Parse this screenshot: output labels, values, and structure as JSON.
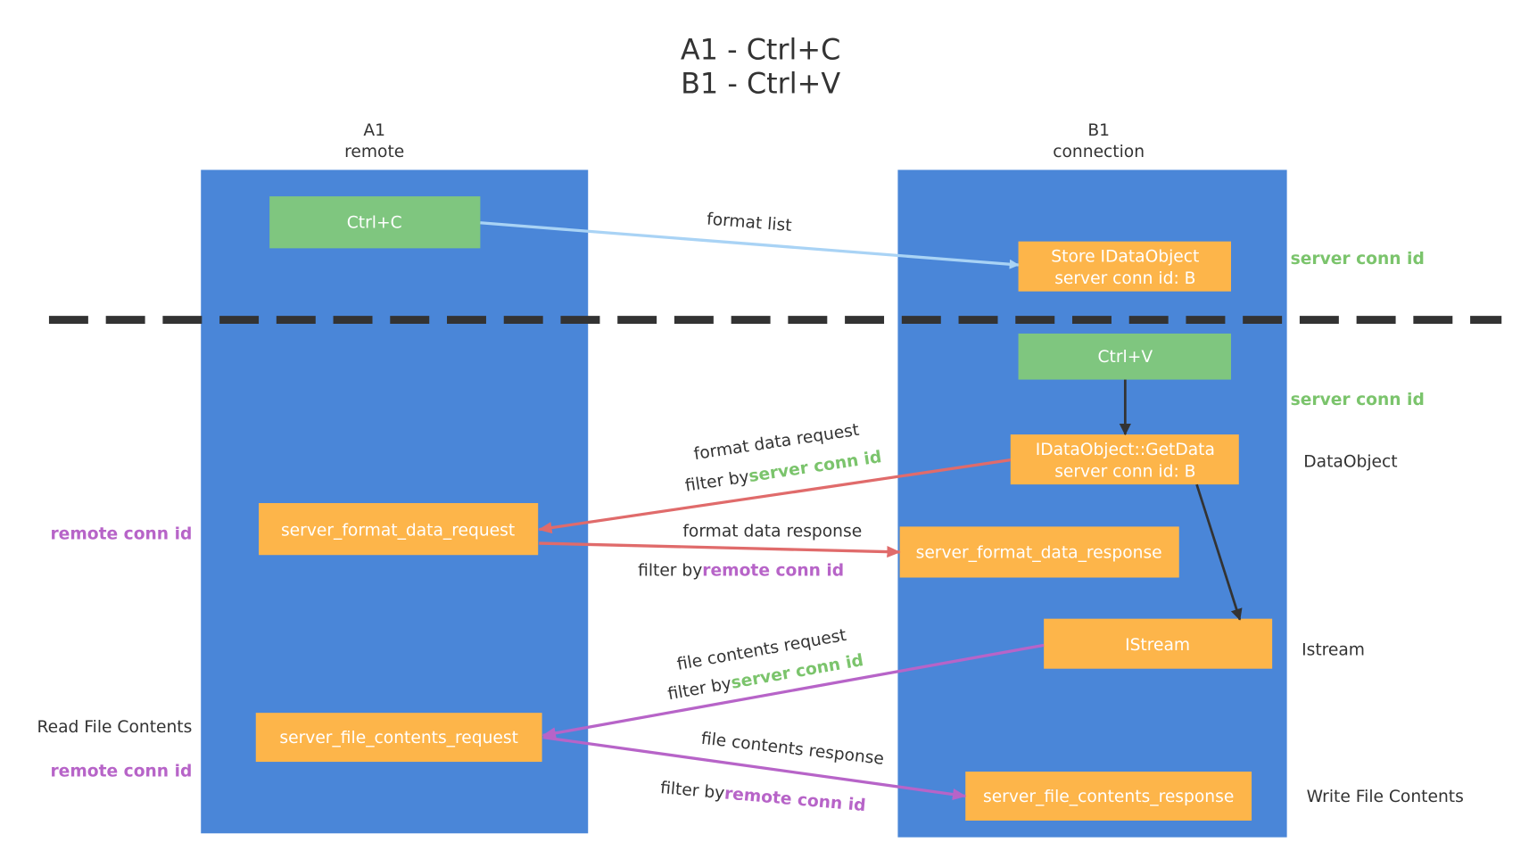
{
  "title": {
    "line1": "A1 - Ctrl+C",
    "line2": "B1 - Ctrl+V"
  },
  "colors": {
    "lane": "#4a86d8",
    "green_box": "#7fc67f",
    "orange_box": "#fdb54a",
    "green_text": "#7bc46c",
    "purple_text": "#b764c8",
    "red_arrow": "#e06b6b",
    "purple_arrow": "#b764c8",
    "blue_arrow": "#a9d3f5",
    "divider": "#333333"
  },
  "lanes": {
    "left": {
      "name": "A1",
      "role": "remote"
    },
    "right": {
      "name": "B1",
      "role": "connection"
    }
  },
  "boxes": {
    "ctrl_c": "Ctrl+C",
    "store_line1": "Store IDataObject",
    "store_line2": "server conn id: B",
    "ctrl_v": "Ctrl+V",
    "getdata_line1": "IDataObject::GetData",
    "getdata_line2": "server conn id: B",
    "format_req": "server_format_data_request",
    "format_resp": "server_format_data_response",
    "istream": "IStream",
    "file_req": "server_file_contents_request",
    "file_resp": "server_file_contents_response"
  },
  "arrows": {
    "format_list": "format list",
    "format_data_request": "format data request",
    "format_data_response": "format data response",
    "file_contents_request": "file contents request",
    "file_contents_response": "file contents response",
    "filter_by": "filter by",
    "server_conn_id": "server conn id",
    "remote_conn_id": "remote conn id"
  },
  "side_labels": {
    "server_conn_id_1": "server conn id",
    "server_conn_id_2": "server conn id",
    "dataobject": "DataObject",
    "istream": "Istream",
    "write_file_contents": "Write File Contents",
    "read_file_contents": "Read File Contents",
    "remote_conn_id_1": "remote conn id",
    "remote_conn_id_2": "remote conn id"
  }
}
